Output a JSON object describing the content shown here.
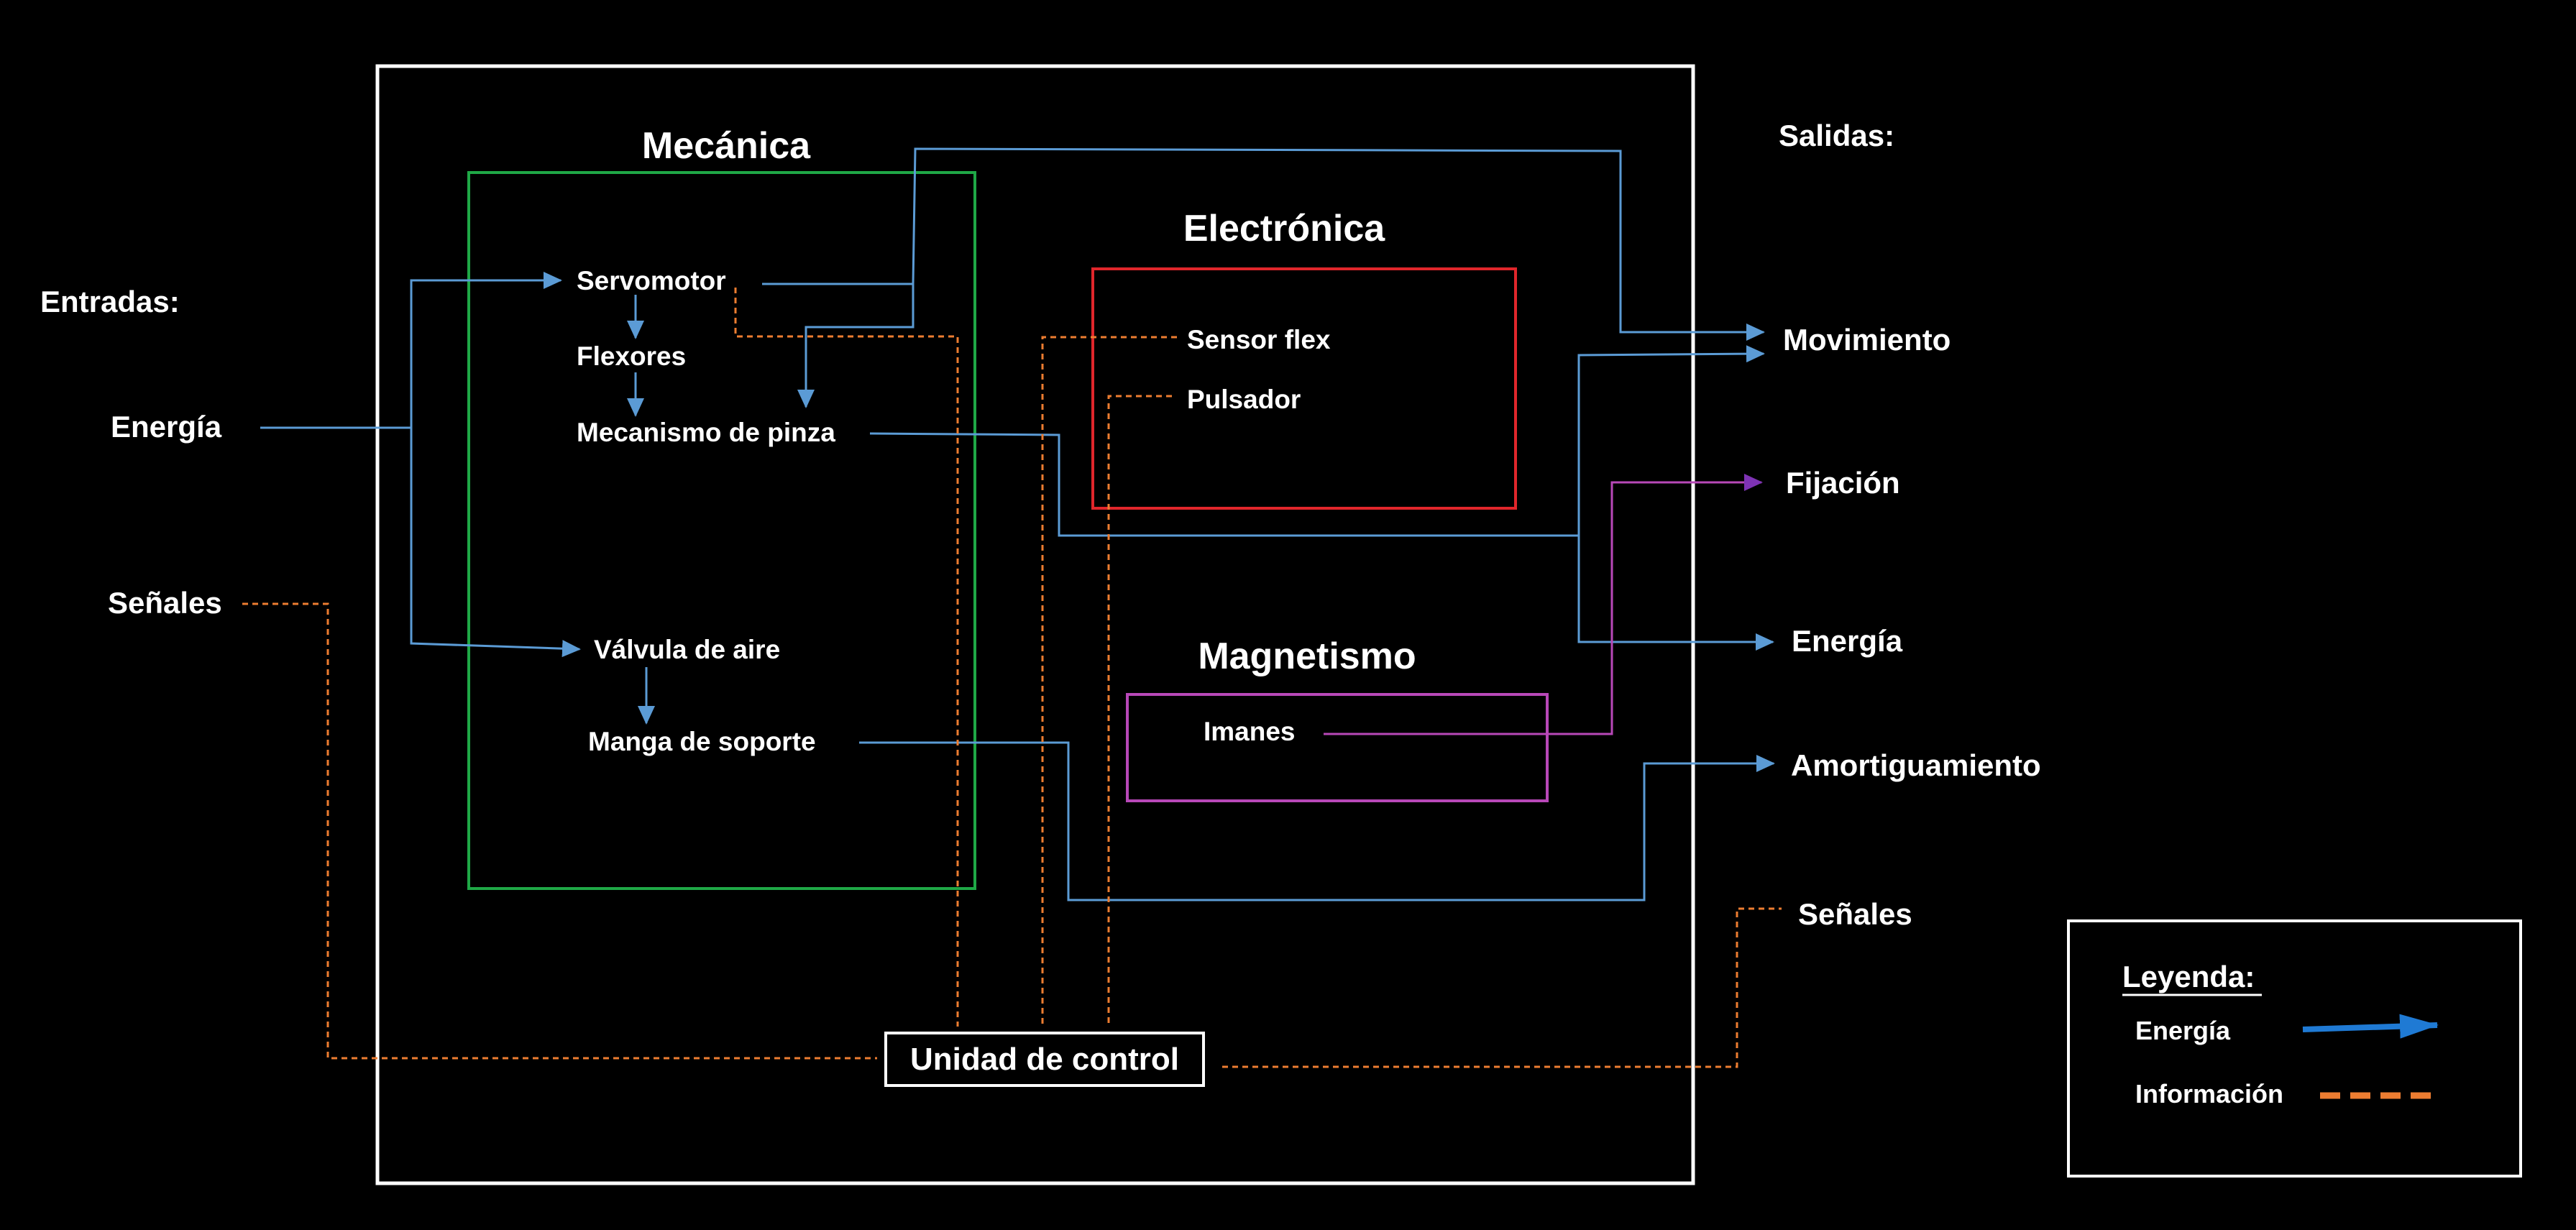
{
  "colors": {
    "background": "#000000",
    "text": "#ffffff",
    "frame": "#ffffff",
    "mecanica": "#1fa846",
    "electronica": "#e0262b",
    "magnetismo": "#b848b8",
    "energy_line": "#5b9bd5",
    "info_line": "#ed7d31",
    "magnet_line": "#7e33b4"
  },
  "inputs": {
    "title": "Entradas:",
    "energia": "Energía",
    "senales": "Señales"
  },
  "outputs": {
    "title": "Salidas:",
    "movimiento": "Movimiento",
    "fijacion": "Fijación",
    "energia": "Energía",
    "amortiguamiento": "Amortiguamiento",
    "senales": "Señales"
  },
  "mecanica": {
    "title": "Mecánica",
    "servomotor": "Servomotor",
    "flexores": "Flexores",
    "pinza": "Mecanismo de pinza",
    "valvula": "Válvula de aire",
    "manga": "Manga de soporte"
  },
  "electronica": {
    "title": "Electrónica",
    "sensor": "Sensor flex",
    "pulsador": "Pulsador"
  },
  "magnetismo": {
    "title": "Magnetismo",
    "imanes": "Imanes"
  },
  "control": {
    "label": "Unidad de control"
  },
  "legend": {
    "title": "Leyenda:",
    "energia": "Energía",
    "informacion": "Información"
  }
}
